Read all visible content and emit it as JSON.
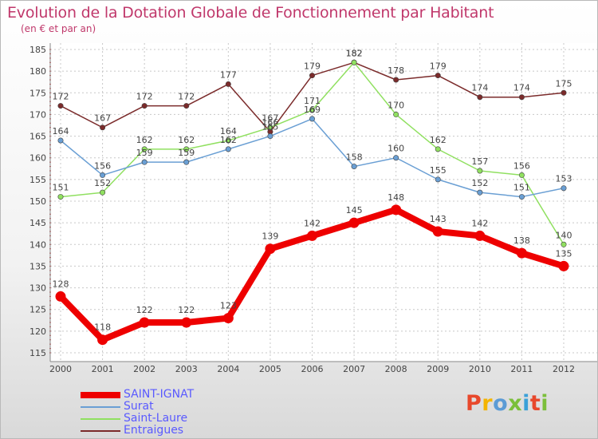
{
  "title": "Evolution de la Dotation Globale de Fonctionnement par Habitant",
  "subtitle": "(en € et par an)",
  "logo": "Proxiti",
  "colors": {
    "title": "#c0386b",
    "legend_text": "#5a5aff",
    "grid": "#c8c8c8",
    "axis": "#888888"
  },
  "chart_data": {
    "type": "line",
    "x": [
      "2000",
      "2001",
      "2002",
      "2003",
      "2004",
      "2005",
      "2006",
      "2007",
      "2008",
      "2009",
      "2010",
      "2011",
      "2012"
    ],
    "ylim": [
      115,
      185
    ],
    "yticks": [
      "115",
      "120",
      "125",
      "130",
      "135",
      "140",
      "145",
      "150",
      "155",
      "160",
      "165",
      "170",
      "175",
      "180",
      "185"
    ],
    "grid": true,
    "legend_position": "bottom-left",
    "series": [
      {
        "name": "Entraigues",
        "color": "#7b2b2b",
        "width": 1.5,
        "values": [
          172,
          167,
          172,
          172,
          177,
          166,
          179,
          182,
          178,
          179,
          174,
          174,
          175
        ]
      },
      {
        "name": "Saint-Laure",
        "color": "#90e060",
        "width": 1.5,
        "values": [
          151,
          152,
          162,
          162,
          164,
          167,
          171,
          182,
          170,
          162,
          157,
          156,
          140
        ]
      },
      {
        "name": "Surat",
        "color": "#6a9fd4",
        "width": 1.5,
        "values": [
          164,
          156,
          159,
          159,
          162,
          165,
          169,
          158,
          160,
          155,
          152,
          151,
          153
        ]
      },
      {
        "name": "SAINT-IGNAT",
        "color": "#ee0000",
        "width": 8,
        "values": [
          128,
          118,
          122,
          122,
          123,
          139,
          142,
          145,
          148,
          143,
          142,
          138,
          135
        ]
      }
    ],
    "legend_order": [
      "SAINT-IGNAT",
      "Surat",
      "Saint-Laure",
      "Entraigues"
    ]
  }
}
